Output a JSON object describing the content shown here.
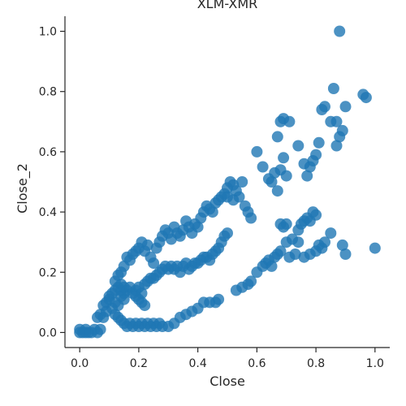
{
  "chart_data": {
    "type": "scatter",
    "title": "XLM-XMR",
    "xlabel": "Close",
    "ylabel": "Close_2",
    "xlim": [
      -0.05,
      1.05
    ],
    "ylim": [
      -0.05,
      1.05
    ],
    "xticks": [
      0.0,
      0.2,
      0.4,
      0.6,
      0.8,
      1.0
    ],
    "yticks": [
      0.0,
      0.2,
      0.4,
      0.6,
      0.8,
      1.0
    ],
    "xtick_labels": [
      "0.0",
      "0.2",
      "0.4",
      "0.6",
      "0.8",
      "1.0"
    ],
    "ytick_labels": [
      "0.0",
      "0.2",
      "0.4",
      "0.6",
      "0.8",
      "1.0"
    ],
    "grid": false,
    "point_color": "#1f77b4",
    "points": [
      [
        0.0,
        0.0
      ],
      [
        0.01,
        0.0
      ],
      [
        0.02,
        0.01
      ],
      [
        0.03,
        0.0
      ],
      [
        0.04,
        0.0
      ],
      [
        0.05,
        0.01
      ],
      [
        0.06,
        0.0
      ],
      [
        0.07,
        0.01
      ],
      [
        0.0,
        0.01
      ],
      [
        0.02,
        0.0
      ],
      [
        0.06,
        0.05
      ],
      [
        0.07,
        0.06
      ],
      [
        0.08,
        0.05
      ],
      [
        0.09,
        0.07
      ],
      [
        0.08,
        0.09
      ],
      [
        0.09,
        0.1
      ],
      [
        0.1,
        0.11
      ],
      [
        0.1,
        0.12
      ],
      [
        0.11,
        0.13
      ],
      [
        0.11,
        0.08
      ],
      [
        0.12,
        0.1
      ],
      [
        0.12,
        0.14
      ],
      [
        0.13,
        0.15
      ],
      [
        0.13,
        0.09
      ],
      [
        0.14,
        0.12
      ],
      [
        0.14,
        0.16
      ],
      [
        0.15,
        0.13
      ],
      [
        0.15,
        0.11
      ],
      [
        0.12,
        0.17
      ],
      [
        0.13,
        0.19
      ],
      [
        0.14,
        0.2
      ],
      [
        0.15,
        0.22
      ],
      [
        0.16,
        0.25
      ],
      [
        0.17,
        0.24
      ],
      [
        0.18,
        0.26
      ],
      [
        0.19,
        0.27
      ],
      [
        0.2,
        0.28
      ],
      [
        0.21,
        0.3
      ],
      [
        0.22,
        0.27
      ],
      [
        0.23,
        0.29
      ],
      [
        0.24,
        0.25
      ],
      [
        0.25,
        0.23
      ],
      [
        0.26,
        0.28
      ],
      [
        0.27,
        0.3
      ],
      [
        0.28,
        0.32
      ],
      [
        0.29,
        0.34
      ],
      [
        0.3,
        0.33
      ],
      [
        0.31,
        0.31
      ],
      [
        0.32,
        0.35
      ],
      [
        0.33,
        0.33
      ],
      [
        0.34,
        0.32
      ],
      [
        0.35,
        0.34
      ],
      [
        0.36,
        0.37
      ],
      [
        0.37,
        0.35
      ],
      [
        0.38,
        0.33
      ],
      [
        0.39,
        0.36
      ],
      [
        0.4,
        0.35
      ],
      [
        0.41,
        0.38
      ],
      [
        0.42,
        0.4
      ],
      [
        0.43,
        0.42
      ],
      [
        0.44,
        0.41
      ],
      [
        0.45,
        0.4
      ],
      [
        0.46,
        0.43
      ],
      [
        0.47,
        0.44
      ],
      [
        0.48,
        0.45
      ],
      [
        0.49,
        0.46
      ],
      [
        0.5,
        0.48
      ],
      [
        0.51,
        0.5
      ],
      [
        0.52,
        0.49
      ],
      [
        0.53,
        0.47
      ],
      [
        0.54,
        0.45
      ],
      [
        0.55,
        0.5
      ],
      [
        0.5,
        0.45
      ],
      [
        0.52,
        0.44
      ],
      [
        0.56,
        0.42
      ],
      [
        0.57,
        0.4
      ],
      [
        0.58,
        0.38
      ],
      [
        0.6,
        0.6
      ],
      [
        0.62,
        0.55
      ],
      [
        0.64,
        0.51
      ],
      [
        0.65,
        0.5
      ],
      [
        0.66,
        0.53
      ],
      [
        0.67,
        0.47
      ],
      [
        0.68,
        0.54
      ],
      [
        0.69,
        0.58
      ],
      [
        0.7,
        0.52
      ],
      [
        0.67,
        0.65
      ],
      [
        0.68,
        0.7
      ],
      [
        0.69,
        0.71
      ],
      [
        0.71,
        0.7
      ],
      [
        0.74,
        0.62
      ],
      [
        0.76,
        0.56
      ],
      [
        0.77,
        0.52
      ],
      [
        0.78,
        0.55
      ],
      [
        0.79,
        0.57
      ],
      [
        0.8,
        0.59
      ],
      [
        0.81,
        0.63
      ],
      [
        0.82,
        0.74
      ],
      [
        0.83,
        0.75
      ],
      [
        0.85,
        0.7
      ],
      [
        0.86,
        0.81
      ],
      [
        0.87,
        0.62
      ],
      [
        0.87,
        0.7
      ],
      [
        0.88,
        0.65
      ],
      [
        0.89,
        0.67
      ],
      [
        0.9,
        0.75
      ],
      [
        0.96,
        0.79
      ],
      [
        0.97,
        0.78
      ],
      [
        0.88,
        1.0
      ],
      [
        0.12,
        0.06
      ],
      [
        0.13,
        0.05
      ],
      [
        0.14,
        0.04
      ],
      [
        0.15,
        0.03
      ],
      [
        0.16,
        0.02
      ],
      [
        0.17,
        0.03
      ],
      [
        0.18,
        0.02
      ],
      [
        0.19,
        0.03
      ],
      [
        0.2,
        0.02
      ],
      [
        0.21,
        0.03
      ],
      [
        0.22,
        0.02
      ],
      [
        0.23,
        0.03
      ],
      [
        0.24,
        0.02
      ],
      [
        0.25,
        0.03
      ],
      [
        0.26,
        0.02
      ],
      [
        0.27,
        0.03
      ],
      [
        0.28,
        0.02
      ],
      [
        0.3,
        0.02
      ],
      [
        0.32,
        0.03
      ],
      [
        0.34,
        0.05
      ],
      [
        0.36,
        0.06
      ],
      [
        0.38,
        0.07
      ],
      [
        0.4,
        0.08
      ],
      [
        0.42,
        0.1
      ],
      [
        0.44,
        0.1
      ],
      [
        0.46,
        0.1
      ],
      [
        0.47,
        0.11
      ],
      [
        0.14,
        0.14
      ],
      [
        0.15,
        0.15
      ],
      [
        0.16,
        0.14
      ],
      [
        0.17,
        0.15
      ],
      [
        0.18,
        0.13
      ],
      [
        0.19,
        0.12
      ],
      [
        0.2,
        0.11
      ],
      [
        0.21,
        0.1
      ],
      [
        0.22,
        0.09
      ],
      [
        0.19,
        0.14
      ],
      [
        0.2,
        0.15
      ],
      [
        0.21,
        0.13
      ],
      [
        0.22,
        0.16
      ],
      [
        0.23,
        0.17
      ],
      [
        0.24,
        0.18
      ],
      [
        0.25,
        0.18
      ],
      [
        0.26,
        0.19
      ],
      [
        0.27,
        0.2
      ],
      [
        0.28,
        0.21
      ],
      [
        0.29,
        0.22
      ],
      [
        0.3,
        0.21
      ],
      [
        0.31,
        0.22
      ],
      [
        0.32,
        0.21
      ],
      [
        0.33,
        0.22
      ],
      [
        0.34,
        0.2
      ],
      [
        0.35,
        0.22
      ],
      [
        0.36,
        0.23
      ],
      [
        0.37,
        0.21
      ],
      [
        0.38,
        0.22
      ],
      [
        0.39,
        0.23
      ],
      [
        0.4,
        0.23
      ],
      [
        0.41,
        0.24
      ],
      [
        0.42,
        0.25
      ],
      [
        0.43,
        0.25
      ],
      [
        0.44,
        0.24
      ],
      [
        0.45,
        0.26
      ],
      [
        0.46,
        0.27
      ],
      [
        0.47,
        0.28
      ],
      [
        0.48,
        0.3
      ],
      [
        0.49,
        0.32
      ],
      [
        0.5,
        0.33
      ],
      [
        0.53,
        0.14
      ],
      [
        0.55,
        0.15
      ],
      [
        0.57,
        0.16
      ],
      [
        0.58,
        0.17
      ],
      [
        0.6,
        0.2
      ],
      [
        0.62,
        0.22
      ],
      [
        0.63,
        0.23
      ],
      [
        0.64,
        0.24
      ],
      [
        0.65,
        0.22
      ],
      [
        0.66,
        0.25
      ],
      [
        0.67,
        0.26
      ],
      [
        0.68,
        0.27
      ],
      [
        0.7,
        0.3
      ],
      [
        0.72,
        0.31
      ],
      [
        0.74,
        0.34
      ],
      [
        0.75,
        0.36
      ],
      [
        0.76,
        0.37
      ],
      [
        0.77,
        0.38
      ],
      [
        0.78,
        0.37
      ],
      [
        0.79,
        0.4
      ],
      [
        0.8,
        0.39
      ],
      [
        0.68,
        0.36
      ],
      [
        0.69,
        0.35
      ],
      [
        0.7,
        0.36
      ],
      [
        0.71,
        0.25
      ],
      [
        0.73,
        0.26
      ],
      [
        0.74,
        0.3
      ],
      [
        0.76,
        0.25
      ],
      [
        0.78,
        0.26
      ],
      [
        0.8,
        0.27
      ],
      [
        0.81,
        0.29
      ],
      [
        0.82,
        0.28
      ],
      [
        0.83,
        0.3
      ],
      [
        0.85,
        0.33
      ],
      [
        0.89,
        0.29
      ],
      [
        0.9,
        0.26
      ],
      [
        1.0,
        0.28
      ]
    ]
  }
}
